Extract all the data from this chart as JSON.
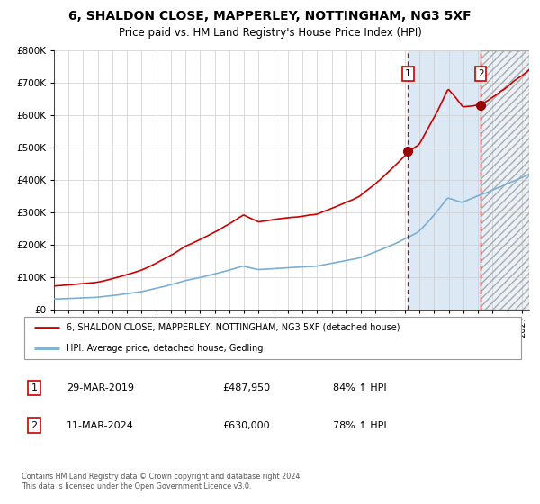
{
  "title": "6, SHALDON CLOSE, MAPPERLEY, NOTTINGHAM, NG3 5XF",
  "subtitle": "Price paid vs. HM Land Registry's House Price Index (HPI)",
  "legend_line1": "6, SHALDON CLOSE, MAPPERLEY, NOTTINGHAM, NG3 5XF (detached house)",
  "legend_line2": "HPI: Average price, detached house, Gedling",
  "marker1_date": "29-MAR-2019",
  "marker1_price": "£487,950",
  "marker1_pct": "84% ↑ HPI",
  "marker2_date": "11-MAR-2024",
  "marker2_price": "£630,000",
  "marker2_pct": "78% ↑ HPI",
  "footnote": "Contains HM Land Registry data © Crown copyright and database right 2024.\nThis data is licensed under the Open Government Licence v3.0.",
  "red_color": "#cc0000",
  "blue_color": "#7bafd4",
  "background_color": "#ffffff",
  "plot_bg_color": "#ffffff",
  "grid_color": "#cccccc",
  "shade_color": "#dde8f5",
  "hatch_color": "#dddddd",
  "ylim": [
    0,
    800000
  ],
  "xlim_start": 1995.0,
  "xlim_end": 2027.5,
  "marker1_x": 2019.22,
  "marker1_y": 487950,
  "marker2_x": 2024.19,
  "marker2_y": 630000,
  "shade_start": 2019.22,
  "shade_end": 2024.19,
  "hatch_start": 2024.19,
  "hatch_end": 2027.5
}
